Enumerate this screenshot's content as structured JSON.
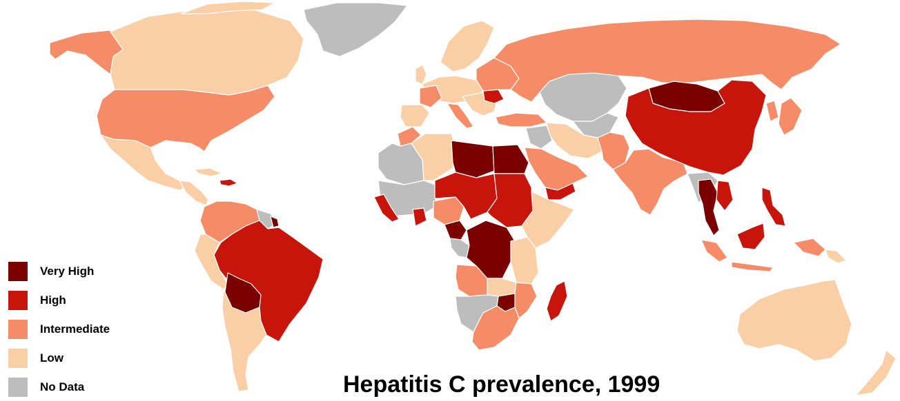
{
  "title": "Hepatitis C prevalence, 1999",
  "legend": [
    {
      "key": "very_high",
      "label": "Very High",
      "color": "#7b0000"
    },
    {
      "key": "high",
      "label": "High",
      "color": "#c8150c"
    },
    {
      "key": "intermediate",
      "label": "Intermediate",
      "color": "#f58b67"
    },
    {
      "key": "low",
      "label": "Low",
      "color": "#fbcfa6"
    },
    {
      "key": "no_data",
      "label": "No Data",
      "color": "#bdbdbd"
    }
  ],
  "colors": {
    "ocean": "#ffffff",
    "border": "#ffffff"
  }
}
